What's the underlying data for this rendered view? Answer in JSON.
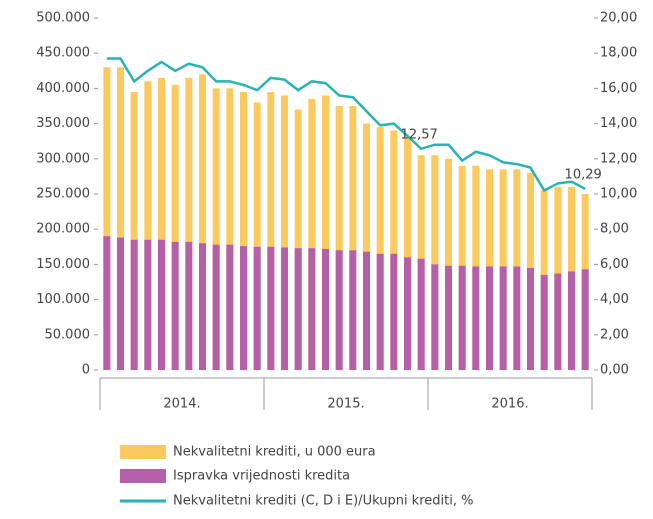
{
  "chart_data": {
    "type": "bar",
    "categories": [
      null,
      null,
      null,
      null,
      null,
      null,
      null,
      null,
      null,
      null,
      null,
      null,
      null,
      null,
      null,
      null,
      null,
      null,
      null,
      null,
      null,
      null,
      null,
      null,
      null,
      null,
      null,
      null,
      null,
      null,
      null,
      null,
      null,
      null,
      null,
      null
    ],
    "x_groups": [
      "2014.",
      "2015.",
      "2016."
    ],
    "series": [
      {
        "name": "Nekvalitetni krediti, u 000 eura",
        "type": "bar",
        "color": "#fcc95e",
        "values": [
          430000,
          430000,
          395000,
          410000,
          415000,
          405000,
          415000,
          420000,
          400000,
          400000,
          395000,
          380000,
          395000,
          390000,
          370000,
          385000,
          390000,
          375000,
          375000,
          350000,
          345000,
          340000,
          330000,
          305000,
          305000,
          300000,
          290000,
          290000,
          285000,
          285000,
          285000,
          280000,
          255000,
          260000,
          260000,
          250000
        ]
      },
      {
        "name": "Ispravka vrijednosti kredita",
        "type": "bar",
        "color": "#b45fa8",
        "values": [
          190000,
          188000,
          185000,
          185000,
          185000,
          182000,
          182000,
          180000,
          178000,
          178000,
          176000,
          175000,
          175000,
          174000,
          173000,
          173000,
          172000,
          170000,
          170000,
          168000,
          165000,
          165000,
          160000,
          158000,
          150000,
          148000,
          148000,
          147000,
          147000,
          147000,
          147000,
          145000,
          135000,
          137000,
          140000,
          143000
        ]
      },
      {
        "name": "Nekvalitetni krediti  (C, D i E)/Ukupni krediti, %",
        "type": "line",
        "axis": "y2",
        "color": "#2ab3b3",
        "values": [
          17.7,
          17.7,
          16.4,
          17.0,
          17.5,
          17.0,
          17.4,
          17.2,
          16.4,
          16.4,
          16.2,
          15.9,
          16.6,
          16.5,
          15.9,
          16.4,
          16.3,
          15.6,
          15.5,
          14.7,
          13.9,
          14.0,
          13.3,
          12.57,
          12.8,
          12.8,
          11.9,
          12.4,
          12.2,
          11.8,
          11.7,
          11.5,
          10.2,
          10.6,
          10.7,
          10.29
        ],
        "value_labels": [
          null,
          null,
          null,
          null,
          null,
          null,
          null,
          null,
          null,
          null,
          null,
          null,
          null,
          null,
          null,
          null,
          null,
          null,
          null,
          null,
          null,
          null,
          null,
          "12,57",
          null,
          null,
          null,
          null,
          null,
          null,
          null,
          null,
          null,
          null,
          null,
          "10,29"
        ]
      }
    ],
    "ylim": [
      0,
      500000
    ],
    "yticks": [
      0,
      {
        "value": 50000,
        "label": "50.000"
      },
      {
        "value": 100000,
        "label": "100.000"
      },
      {
        "value": 150000,
        "label": "150.000"
      },
      {
        "value": 200000,
        "label": "200.000"
      },
      {
        "value": 250000,
        "label": "250.000"
      },
      {
        "value": 300000,
        "label": "300.000"
      },
      {
        "value": 350000,
        "label": "350.000"
      },
      {
        "value": 400000,
        "label": "400.000"
      },
      {
        "value": 450000,
        "label": "450.000"
      },
      {
        "value": 500000,
        "label": "500.000"
      }
    ],
    "y2lim": [
      0,
      20
    ],
    "y2ticks": [
      {
        "value": 0,
        "label": "0,00"
      },
      {
        "value": 2,
        "label": "2,00"
      },
      {
        "value": 4,
        "label": "4,00"
      },
      {
        "value": 6,
        "label": "6,00"
      },
      {
        "value": 8,
        "label": "8,00"
      },
      {
        "value": 10,
        "label": "10,00"
      },
      {
        "value": 12,
        "label": "12,00"
      },
      {
        "value": 14,
        "label": "14,00"
      },
      {
        "value": 16,
        "label": "16,00"
      },
      {
        "value": 18,
        "label": "18,00"
      },
      {
        "value": 20,
        "label": "20,00"
      }
    ],
    "grid": false
  }
}
